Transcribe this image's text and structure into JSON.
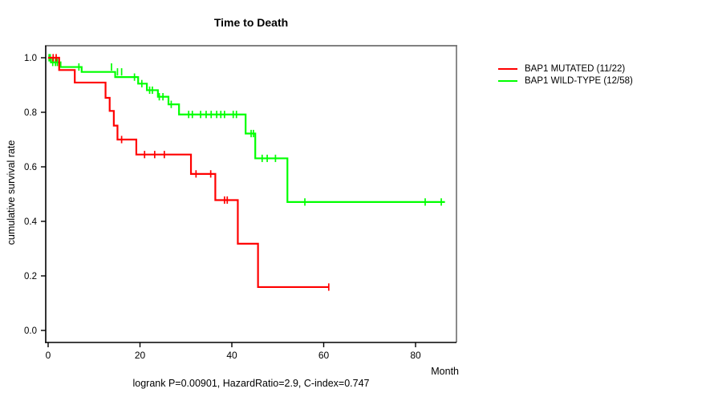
{
  "header": {
    "title": "Time to Death"
  },
  "axes": {
    "y_label": "cumulative survival rate",
    "x_label": "Month",
    "y_ticks": [
      0.0,
      0.2,
      0.4,
      0.6,
      0.8,
      1.0
    ],
    "x_ticks": [
      0,
      20,
      40,
      60,
      80
    ]
  },
  "footnote": "logrank P=0.00901, HazardRatio=2.9, C-index=0.747",
  "legend": {
    "items": [
      {
        "label": "BAP1 MUTATED (11/22)",
        "color": "#ff0000"
      },
      {
        "label": "BAP1 WILD-TYPE (12/58)",
        "color": "#00ff00"
      }
    ]
  },
  "chart_data": {
    "type": "line",
    "subtype": "kaplan-meier-step",
    "title": "Time to Death",
    "xlabel": "Month",
    "ylabel": "cumulative survival rate",
    "xlim": [
      0,
      89
    ],
    "ylim": [
      0.0,
      1.0
    ],
    "grid": false,
    "legend_position": "right-outside",
    "annotation": "logrank P=0.00901, HazardRatio=2.9, C-index=0.747",
    "series": [
      {
        "name": "BAP1 WILD-TYPE (12/58)",
        "color": "#00ff00",
        "events_over_n": "12/58",
        "steps": [
          [
            0,
            1.0
          ],
          [
            0.6,
            0.983
          ],
          [
            2.7,
            0.966
          ],
          [
            7.3,
            0.948
          ],
          [
            14.6,
            0.929
          ],
          [
            19.6,
            0.905
          ],
          [
            21.5,
            0.881
          ],
          [
            23.9,
            0.857
          ],
          [
            26.2,
            0.829
          ],
          [
            28.5,
            0.792
          ],
          [
            43.0,
            0.722
          ],
          [
            45.1,
            0.631
          ],
          [
            52.1,
            0.471
          ],
          [
            86.4,
            0.471
          ]
        ],
        "censors": [
          [
            0.2,
            1.0
          ],
          [
            0.45,
            1.0
          ],
          [
            1.0,
            0.983
          ],
          [
            1.6,
            0.983
          ],
          [
            2.0,
            0.983
          ],
          [
            6.7,
            0.966
          ],
          [
            13.8,
            0.966
          ],
          [
            15.1,
            0.948
          ],
          [
            16.0,
            0.948
          ],
          [
            18.8,
            0.929
          ],
          [
            20.4,
            0.905
          ],
          [
            22.1,
            0.881
          ],
          [
            22.7,
            0.881
          ],
          [
            24.2,
            0.857
          ],
          [
            25.0,
            0.857
          ],
          [
            26.8,
            0.829
          ],
          [
            30.6,
            0.792
          ],
          [
            31.4,
            0.792
          ],
          [
            33.2,
            0.792
          ],
          [
            34.4,
            0.792
          ],
          [
            35.5,
            0.792
          ],
          [
            36.7,
            0.792
          ],
          [
            37.6,
            0.792
          ],
          [
            38.4,
            0.792
          ],
          [
            40.3,
            0.792
          ],
          [
            41.0,
            0.792
          ],
          [
            44.2,
            0.722
          ],
          [
            44.7,
            0.722
          ],
          [
            46.6,
            0.631
          ],
          [
            47.7,
            0.631
          ],
          [
            49.5,
            0.631
          ],
          [
            55.9,
            0.471
          ],
          [
            82.1,
            0.471
          ],
          [
            85.6,
            0.471
          ]
        ]
      },
      {
        "name": "BAP1 MUTATED (11/22)",
        "color": "#ff0000",
        "events_over_n": "11/22",
        "steps": [
          [
            0,
            1.0
          ],
          [
            2.4,
            0.955
          ],
          [
            5.8,
            0.909
          ],
          [
            12.5,
            0.853
          ],
          [
            13.4,
            0.805
          ],
          [
            14.3,
            0.751
          ],
          [
            15.1,
            0.7
          ],
          [
            19.2,
            0.645
          ],
          [
            31.1,
            0.574
          ],
          [
            36.4,
            0.478
          ],
          [
            41.3,
            0.318
          ],
          [
            45.7,
            0.159
          ],
          [
            61.1,
            0.159
          ]
        ],
        "censors": [
          [
            1.1,
            1.0
          ],
          [
            1.75,
            1.0
          ],
          [
            16.0,
            0.7
          ],
          [
            21.0,
            0.645
          ],
          [
            23.2,
            0.645
          ],
          [
            25.3,
            0.645
          ],
          [
            32.2,
            0.574
          ],
          [
            35.4,
            0.574
          ],
          [
            38.4,
            0.478
          ],
          [
            39.0,
            0.478
          ],
          [
            61.1,
            0.159
          ]
        ]
      }
    ]
  }
}
